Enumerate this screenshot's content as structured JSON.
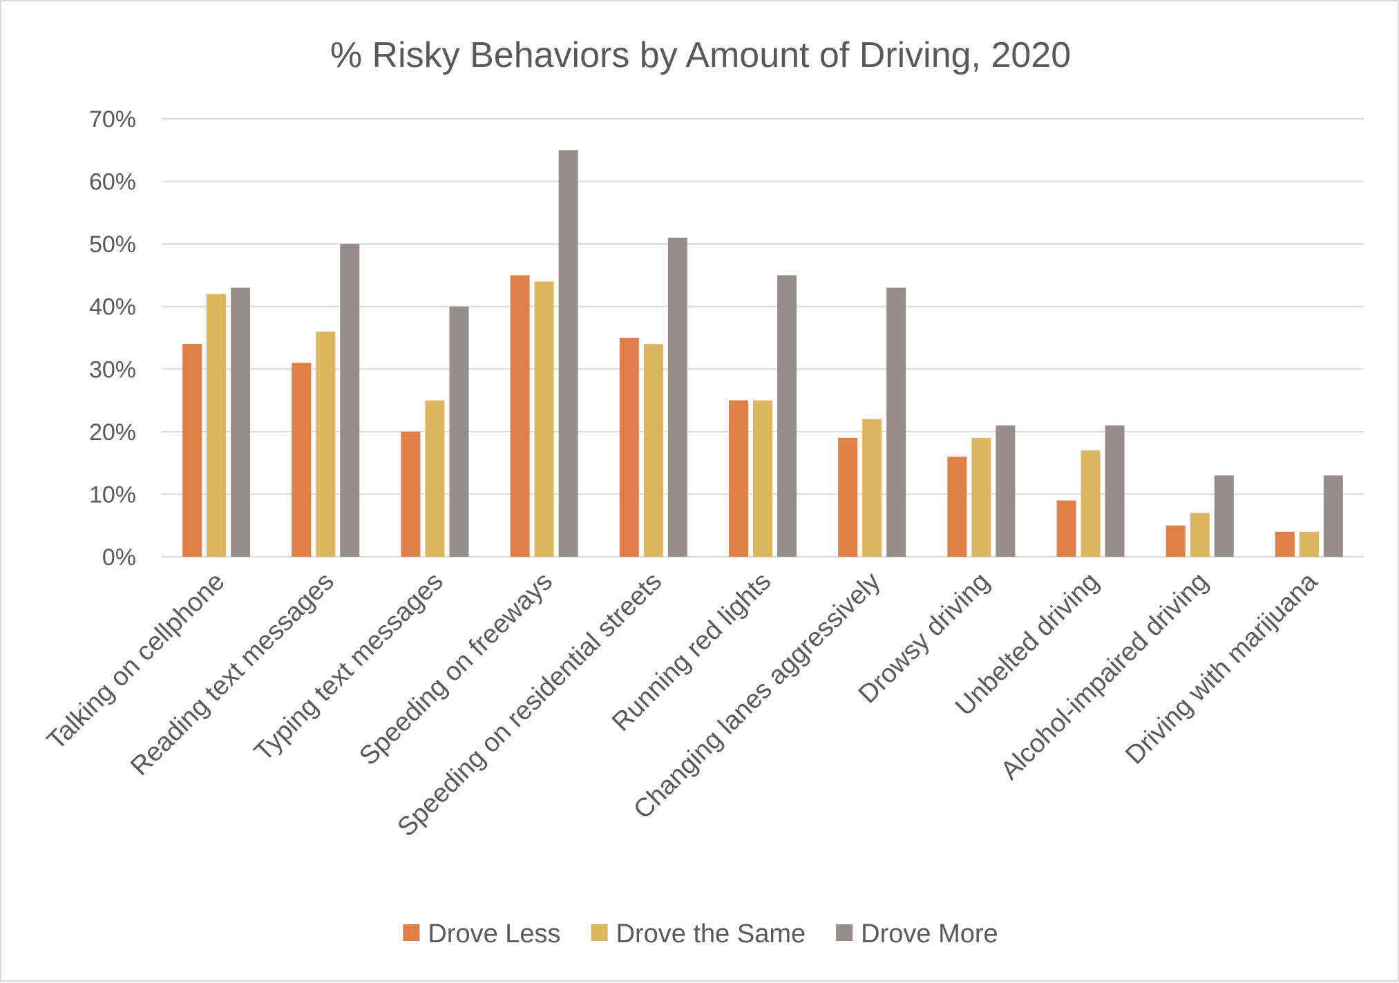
{
  "chart_data": {
    "type": "bar",
    "title": "% Risky Behaviors by Amount of Driving, 2020",
    "xlabel": "",
    "ylabel": "",
    "ylim": [
      0,
      70
    ],
    "y_ticks": [
      0,
      10,
      20,
      30,
      40,
      50,
      60,
      70
    ],
    "y_tick_labels": [
      "0%",
      "10%",
      "20%",
      "30%",
      "40%",
      "50%",
      "60%",
      "70%"
    ],
    "grid": true,
    "legend_position": "bottom",
    "categories": [
      "Talking on cellphone",
      "Reading text messages",
      "Typing text messages",
      "Speeding on freeways",
      "Speeding on residential streets",
      "Running red lights",
      "Changing lanes aggressively",
      "Drowsy driving",
      "Unbelted driving",
      "Alcohol-impaired driving",
      "Driving with marijuana"
    ],
    "series": [
      {
        "name": "Drove Less",
        "color": "#e07f48",
        "values": [
          34,
          31,
          20,
          45,
          35,
          25,
          19,
          16,
          9,
          5,
          4
        ]
      },
      {
        "name": "Drove the Same",
        "color": "#dbb560",
        "values": [
          42,
          36,
          25,
          44,
          34,
          25,
          22,
          19,
          17,
          7,
          4
        ]
      },
      {
        "name": "Drove More",
        "color": "#978d8d",
        "values": [
          43,
          50,
          40,
          65,
          51,
          45,
          43,
          21,
          21,
          13,
          13
        ]
      }
    ]
  }
}
